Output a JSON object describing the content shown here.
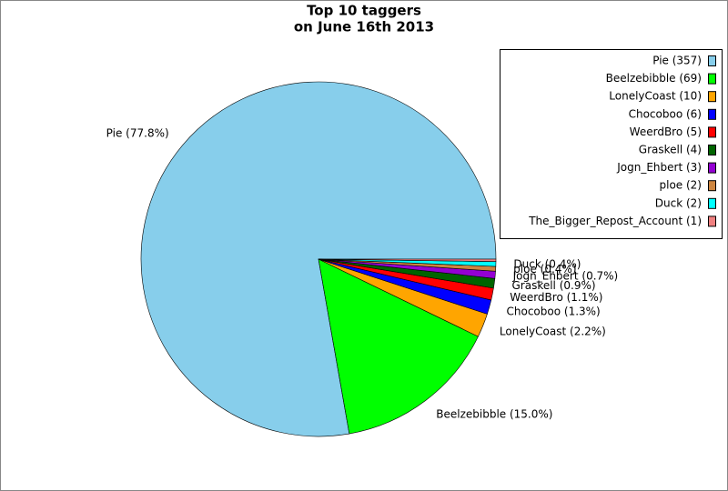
{
  "chart_data": {
    "type": "pie",
    "title": [
      "Top 10 taggers",
      "on June 16th 2013"
    ],
    "categories": [
      "Pie (357)",
      "Beelzebibble (69)",
      "LonelyCoast (10)",
      "Chocoboo (6)",
      "WeerdBro (5)",
      "Graskell (4)",
      "Jogn_Ehbert (3)",
      "ploe (2)",
      "Duck (2)",
      "The_Bigger_Repost_Account (1)"
    ],
    "values": [
      357,
      69,
      10,
      6,
      5,
      4,
      3,
      2,
      2,
      1
    ],
    "value_labels": [
      "Pie (77.8%)",
      "Beelzebibble (15.0%)",
      "LonelyCoast (2.2%)",
      "Chocoboo (1.3%)",
      "WeerdBro (1.1%)",
      "Graskell (0.9%)",
      "Jogn_Ehbert (0.7%)",
      "ploe (0.4%)",
      "Duck (0.4%)",
      null
    ],
    "colors": [
      "#87ceeb",
      "#00ff00",
      "#ffa500",
      "#0000ff",
      "#ff0000",
      "#006400",
      "#9400d3",
      "#cd853f",
      "#00ffff",
      "#f08080"
    ],
    "legend": "upper right"
  }
}
